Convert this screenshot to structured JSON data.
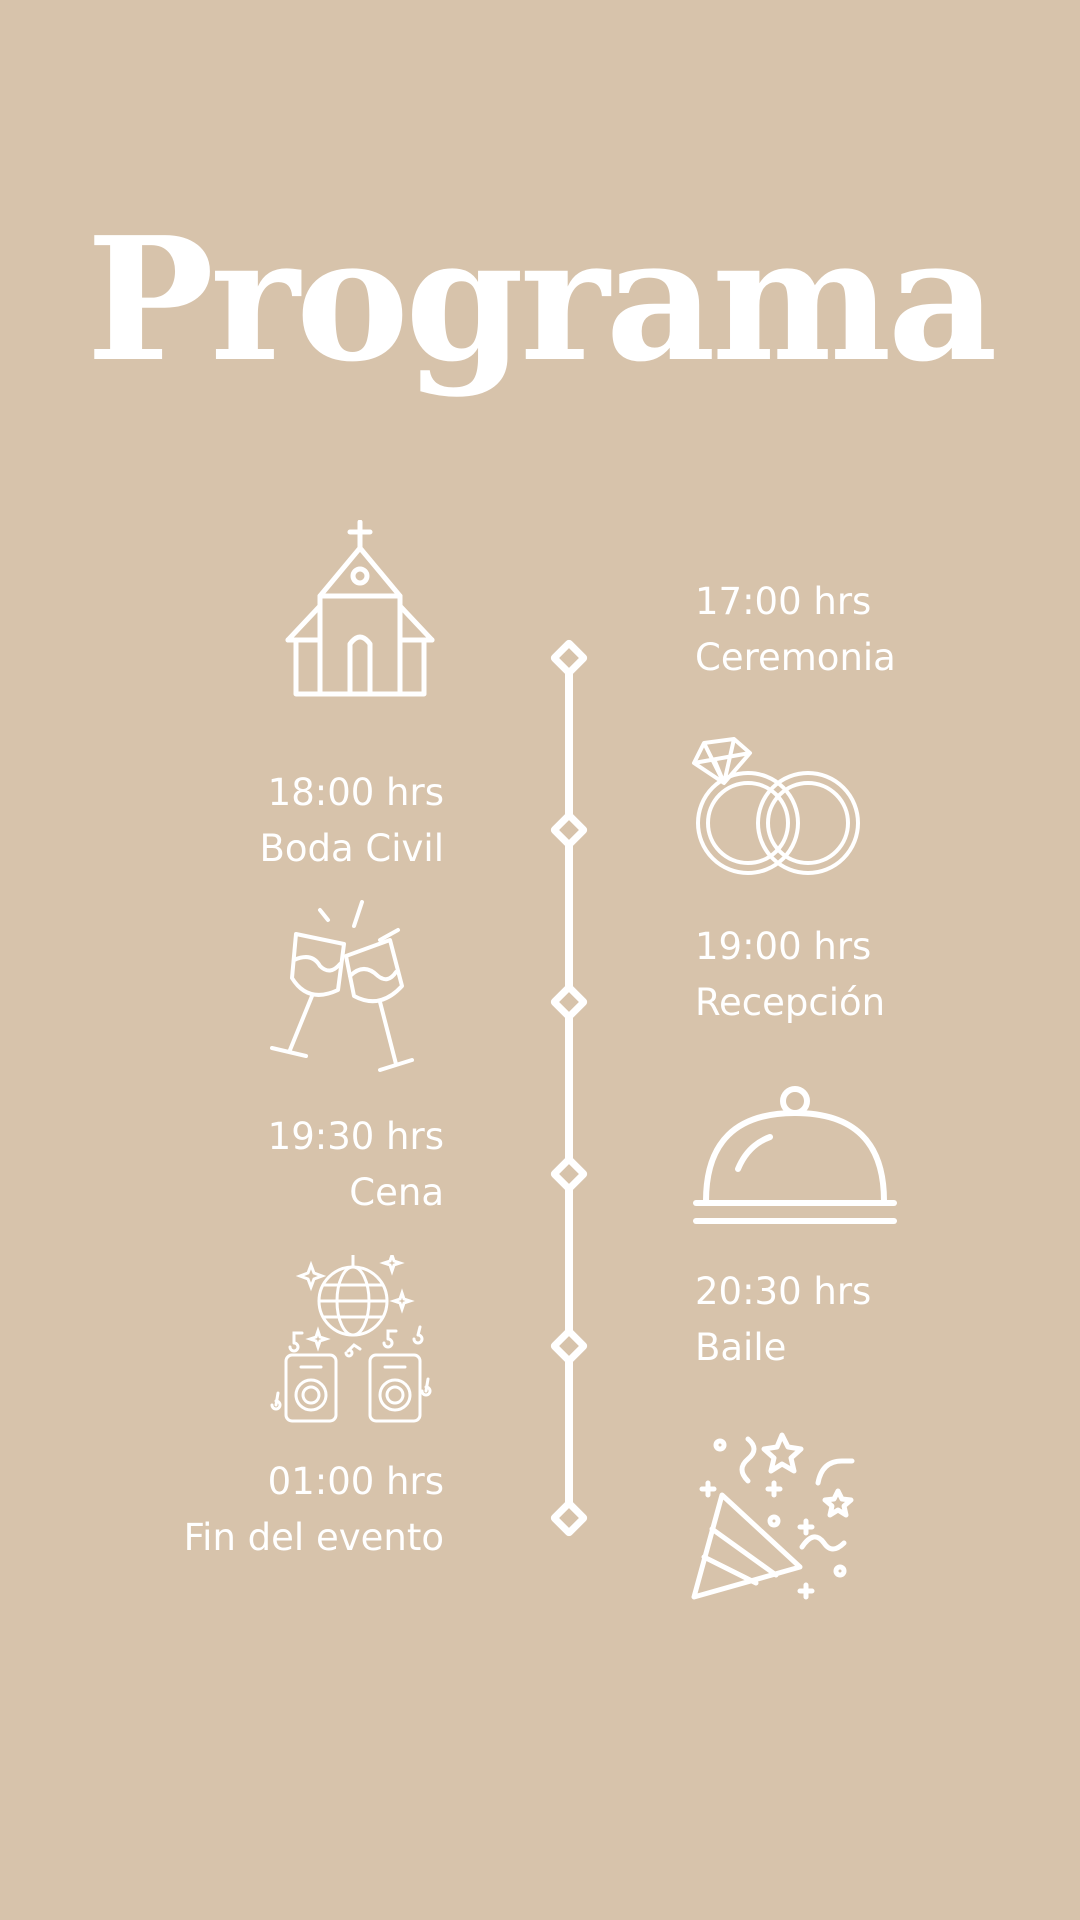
{
  "title": "Programa",
  "events": [
    {
      "time": "17:00 hrs",
      "label": "Ceremonia",
      "icon": "church-icon"
    },
    {
      "time": "18:00 hrs",
      "label": "Boda Civil",
      "icon": "wedding-rings-icon"
    },
    {
      "time": "19:00 hrs",
      "label": "Recepción",
      "icon": "champagne-toast-icon"
    },
    {
      "time": "19:30 hrs",
      "label": "Cena",
      "icon": "cloche-icon"
    },
    {
      "time": "20:30 hrs",
      "label": "Baile",
      "icon": "disco-speakers-icon"
    },
    {
      "time": "01:00 hrs",
      "label": "Fin del evento",
      "icon": "party-popper-icon"
    }
  ],
  "colors": {
    "background": "#d7c3ab",
    "foreground": "#ffffff"
  }
}
